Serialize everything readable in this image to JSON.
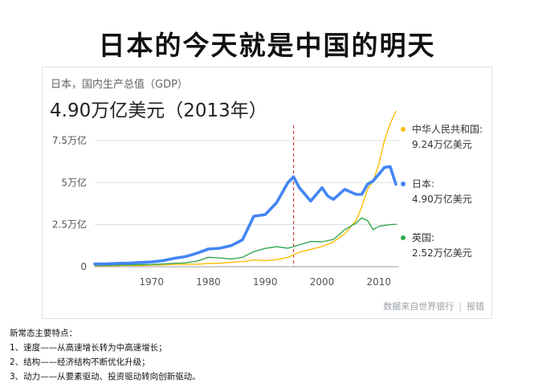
{
  "slide": {
    "title": "日本的今天就是中国的明天"
  },
  "card": {
    "subtitle": "日本，国内生产总值（GDP）",
    "value": "4.90万亿美元（2013年）",
    "source_text": "数据来自世界银行",
    "report_link": "报错"
  },
  "notes": {
    "heading": "新常态主要特点：",
    "items": [
      "1、速度——从高速增长转为中高速增长；",
      "2、结构——经济结构不断优化升级；",
      "3、动力——从要素驱动、投资驱动转向创新驱动。"
    ]
  },
  "colors": {
    "japan": "#4285f4",
    "china": "#fbbc05",
    "uk": "#34a853",
    "marker": "#c5221f",
    "grid": "#dddddd"
  },
  "chart_data": {
    "type": "line",
    "title": "",
    "xlabel": "",
    "ylabel": "",
    "xlim": [
      1960,
      2013
    ],
    "ylim": [
      0,
      8.5
    ],
    "xticks": [
      1970,
      1980,
      1990,
      2000,
      2010
    ],
    "xtick_labels": [
      "1970",
      "1980",
      "1990",
      "2000",
      "2010"
    ],
    "yticks": [
      0,
      2.5,
      5,
      7.5
    ],
    "ytick_labels": [
      "0",
      "2.5万亿",
      "5万亿",
      "7.5万亿"
    ],
    "vertical_marker_x": 1995,
    "grid": true,
    "legend_position": "right",
    "series": [
      {
        "name": "中华人民共和国",
        "legend_label": "中华人民共和国:",
        "legend_value": "9.24万亿美元",
        "color_key": "china",
        "x": [
          1960,
          1962,
          1964,
          1966,
          1968,
          1970,
          1972,
          1974,
          1976,
          1978,
          1980,
          1982,
          1984,
          1986,
          1988,
          1990,
          1992,
          1994,
          1996,
          1998,
          2000,
          2002,
          2004,
          2006,
          2007,
          2008,
          2009,
          2010,
          2011,
          2012,
          2013
        ],
        "y": [
          0.06,
          0.05,
          0.06,
          0.08,
          0.07,
          0.09,
          0.11,
          0.14,
          0.15,
          0.15,
          0.19,
          0.21,
          0.26,
          0.3,
          0.4,
          0.36,
          0.42,
          0.56,
          0.86,
          1.03,
          1.2,
          1.47,
          1.96,
          2.75,
          3.55,
          4.6,
          5.1,
          6.1,
          7.5,
          8.5,
          9.24
        ]
      },
      {
        "name": "日本",
        "legend_label": "日本:",
        "legend_value": "4.90万亿美元",
        "color_key": "japan",
        "x": [
          1960,
          1962,
          1964,
          1966,
          1968,
          1970,
          1972,
          1974,
          1976,
          1978,
          1980,
          1982,
          1984,
          1986,
          1988,
          1990,
          1992,
          1994,
          1995,
          1996,
          1998,
          2000,
          2001,
          2002,
          2004,
          2006,
          2007,
          2008,
          2009,
          2010,
          2011,
          2012,
          2013
        ],
        "y": [
          0.16,
          0.16,
          0.2,
          0.21,
          0.25,
          0.28,
          0.36,
          0.5,
          0.6,
          0.8,
          1.05,
          1.1,
          1.25,
          1.6,
          3.0,
          3.1,
          3.8,
          5.0,
          5.34,
          4.7,
          3.9,
          4.7,
          4.2,
          4.0,
          4.6,
          4.3,
          4.3,
          4.9,
          5.1,
          5.5,
          5.9,
          5.95,
          4.9
        ]
      },
      {
        "name": "英国",
        "legend_label": "英国:",
        "legend_value": "2.52万亿美元",
        "color_key": "uk",
        "x": [
          1960,
          1962,
          1964,
          1966,
          1968,
          1970,
          1972,
          1974,
          1976,
          1978,
          1980,
          1982,
          1984,
          1986,
          1988,
          1990,
          1992,
          1994,
          1996,
          1998,
          2000,
          2002,
          2004,
          2006,
          2007,
          2008,
          2009,
          2010,
          2012,
          2013
        ],
        "y": [
          0.07,
          0.08,
          0.1,
          0.11,
          0.12,
          0.13,
          0.16,
          0.2,
          0.23,
          0.33,
          0.56,
          0.52,
          0.46,
          0.56,
          0.9,
          1.09,
          1.19,
          1.1,
          1.3,
          1.5,
          1.48,
          1.62,
          2.2,
          2.6,
          2.9,
          2.75,
          2.2,
          2.4,
          2.5,
          2.52
        ]
      }
    ]
  }
}
